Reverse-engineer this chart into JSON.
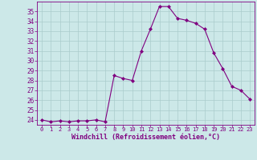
{
  "x": [
    0,
    1,
    2,
    3,
    4,
    5,
    6,
    7,
    8,
    9,
    10,
    11,
    12,
    13,
    14,
    15,
    16,
    17,
    18,
    19,
    20,
    21,
    22,
    23
  ],
  "y": [
    24.0,
    23.8,
    23.9,
    23.8,
    23.9,
    23.9,
    24.0,
    23.8,
    28.5,
    28.2,
    28.0,
    31.0,
    33.2,
    35.5,
    35.5,
    34.3,
    34.1,
    33.8,
    33.2,
    30.8,
    29.2,
    27.4,
    27.0,
    26.1
  ],
  "line_color": "#800080",
  "marker": "D",
  "marker_size": 2,
  "bg_color": "#cce8e8",
  "grid_color": "#aacccc",
  "xlabel": "Windchill (Refroidissement éolien,°C)",
  "ylabel": "",
  "ylim": [
    23.5,
    36.0
  ],
  "xlim": [
    -0.5,
    23.5
  ],
  "yticks": [
    24,
    25,
    26,
    27,
    28,
    29,
    30,
    31,
    32,
    33,
    34,
    35
  ],
  "xticks": [
    0,
    1,
    2,
    3,
    4,
    5,
    6,
    7,
    8,
    9,
    10,
    11,
    12,
    13,
    14,
    15,
    16,
    17,
    18,
    19,
    20,
    21,
    22,
    23
  ],
  "tick_color": "#800080",
  "label_color": "#800080",
  "xlabel_fontsize": 6.0,
  "ytick_fontsize": 5.5,
  "xtick_fontsize": 5.0
}
